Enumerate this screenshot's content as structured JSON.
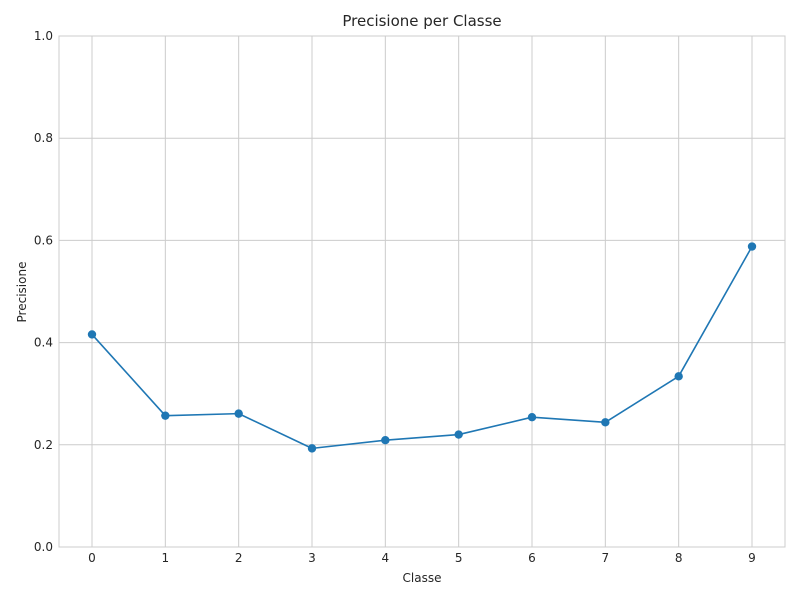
{
  "chart_data": {
    "type": "line",
    "title": "Precisione per Classe",
    "xlabel": "Classe",
    "ylabel": "Precisione",
    "x": [
      0,
      1,
      2,
      3,
      4,
      5,
      6,
      7,
      8,
      9
    ],
    "series": [
      {
        "values": [
          0.416,
          0.257,
          0.261,
          0.193,
          0.209,
          0.22,
          0.254,
          0.244,
          0.334,
          0.588
        ],
        "color": "#1f77b4"
      }
    ],
    "xlim": [
      -0.45,
      9.45
    ],
    "ylim": [
      0.0,
      1.0
    ],
    "yticks": [
      0.0,
      0.2,
      0.4,
      0.6,
      0.8,
      1.0
    ],
    "yticklabels": [
      "0.0",
      "0.2",
      "0.4",
      "0.6",
      "0.8",
      "1.0"
    ],
    "xticks": [
      0,
      1,
      2,
      3,
      4,
      5,
      6,
      7,
      8,
      9
    ],
    "xticklabels": [
      "0",
      "1",
      "2",
      "3",
      "4",
      "5",
      "6",
      "7",
      "8",
      "9"
    ],
    "grid": true,
    "marker": "circle"
  }
}
